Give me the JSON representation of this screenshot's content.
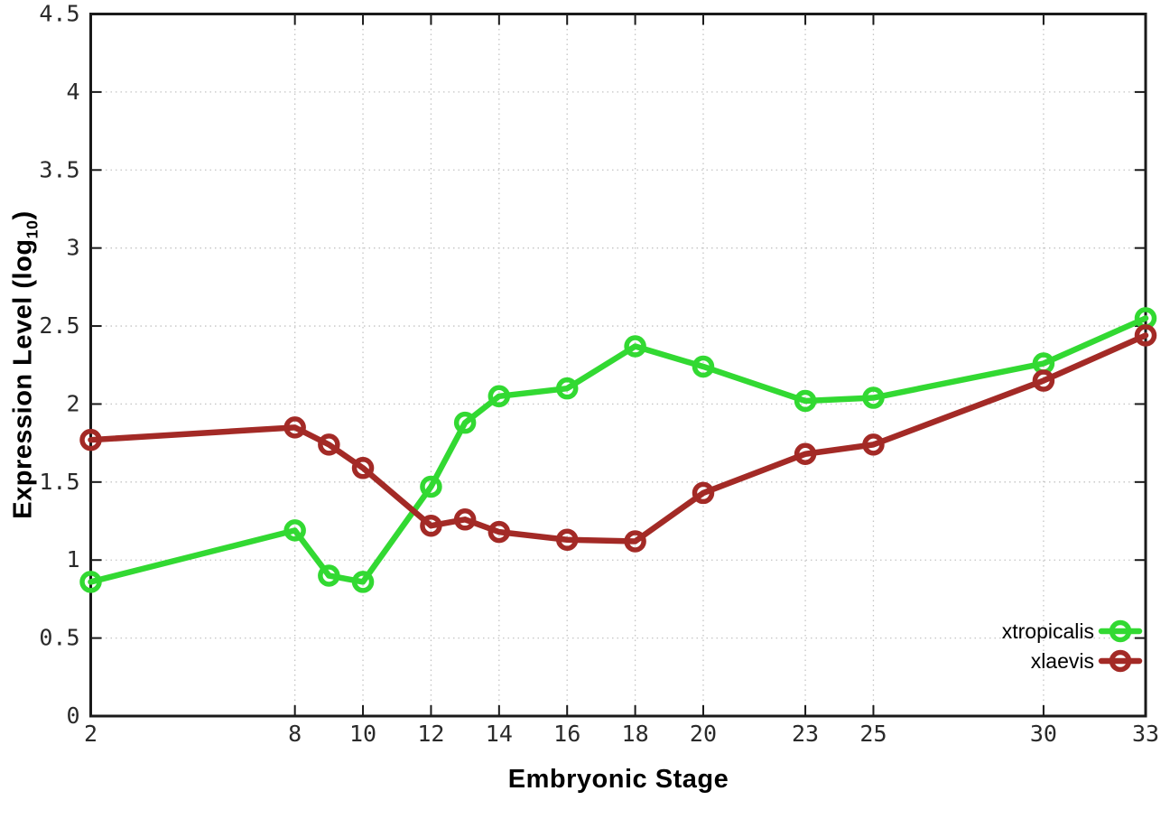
{
  "chart_data": {
    "type": "line",
    "title": "",
    "xlabel": "Embryonic Stage",
    "ylabel": {
      "text": "Expression Level (log10)",
      "prefix": "Expression Level (log",
      "sub": "10",
      "suffix": ")"
    },
    "x": [
      2,
      8,
      9,
      10,
      12,
      13,
      14,
      16,
      18,
      20,
      23,
      25,
      30,
      33
    ],
    "series": [
      {
        "name": "xtropicalis",
        "color": "#32d932",
        "values": [
          0.86,
          1.19,
          0.9,
          0.86,
          1.47,
          1.88,
          2.05,
          2.1,
          2.37,
          2.24,
          2.02,
          2.04,
          2.26,
          2.55
        ]
      },
      {
        "name": "xlaevis",
        "color": "#a32a26",
        "values": [
          1.77,
          1.85,
          1.74,
          1.59,
          1.22,
          1.26,
          1.18,
          1.13,
          1.12,
          1.43,
          1.68,
          1.74,
          2.15,
          2.44
        ]
      }
    ],
    "xlim": [
      2,
      33
    ],
    "ylim": [
      0,
      4.5
    ],
    "xticks": [
      2,
      8,
      10,
      12,
      14,
      16,
      18,
      20,
      23,
      25,
      30,
      33
    ],
    "yticks": [
      0,
      0.5,
      1,
      1.5,
      2,
      2.5,
      3,
      3.5,
      4,
      4.5
    ],
    "ytick_labels": [
      "0",
      "0.5",
      "1",
      "1.5",
      "2",
      "2.5",
      "3",
      "3.5",
      "4",
      "4.5"
    ],
    "grid": true,
    "legend_position": "bottom-right",
    "legend": [
      "xtropicalis",
      "xlaevis"
    ],
    "colors": {
      "background": "#ffffff",
      "grid": "#c4c4c4",
      "axis": "#1a1a1a",
      "tick_text": "#2a2a2a",
      "xtropicalis": "#32d932",
      "xlaevis": "#a32a26"
    }
  }
}
